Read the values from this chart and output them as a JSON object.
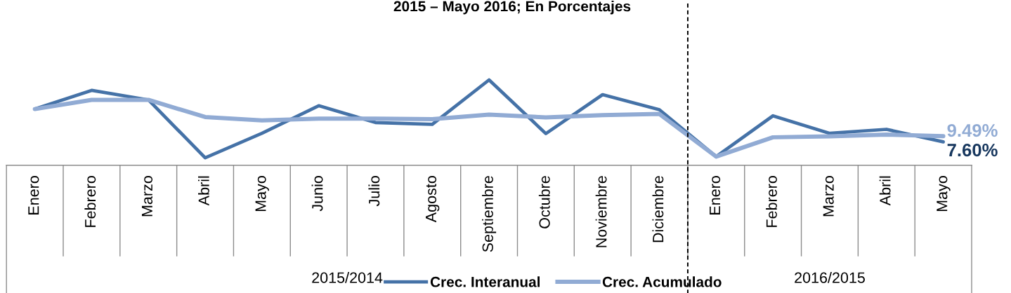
{
  "chart_data": {
    "type": "line",
    "title": "2015 – Mayo 2016; En Porcentajes",
    "categories": [
      "Enero",
      "Febrero",
      "Marzo",
      "Abril",
      "Mayo",
      "Junio",
      "Julio",
      "Agosto",
      "Septiembre",
      "Octubre",
      "Noviembre",
      "Diciembre",
      "Enero",
      "Febrero",
      "Marzo",
      "Abril",
      "Mayo"
    ],
    "series": [
      {
        "name": "Crec. Interanual",
        "color": "#4572a7",
        "values": [
          18.3,
          24.4,
          21.3,
          2.4,
          10.4,
          19.4,
          13.9,
          13.3,
          27.8,
          10.3,
          23.0,
          18.1,
          2.8,
          16.1,
          10.4,
          11.7,
          7.6
        ],
        "value_labels": [
          null,
          null,
          null,
          null,
          null,
          null,
          null,
          null,
          null,
          null,
          null,
          null,
          null,
          null,
          null,
          null,
          "7.60%"
        ]
      },
      {
        "name": "Crec. Acumulado",
        "color": "#91abd4",
        "values": [
          18.3,
          21.3,
          21.3,
          15.7,
          14.6,
          15.2,
          15.2,
          15.0,
          16.5,
          15.6,
          16.3,
          16.7,
          2.8,
          9.1,
          9.4,
          10.0,
          9.49
        ],
        "value_labels": [
          null,
          null,
          null,
          null,
          null,
          null,
          null,
          null,
          null,
          null,
          null,
          null,
          null,
          null,
          null,
          null,
          "9.49%"
        ]
      }
    ],
    "tick_labels": "x",
    "annotations": [
      "2015/2014",
      "2016/2015"
    ],
    "legend": "bottom"
  }
}
